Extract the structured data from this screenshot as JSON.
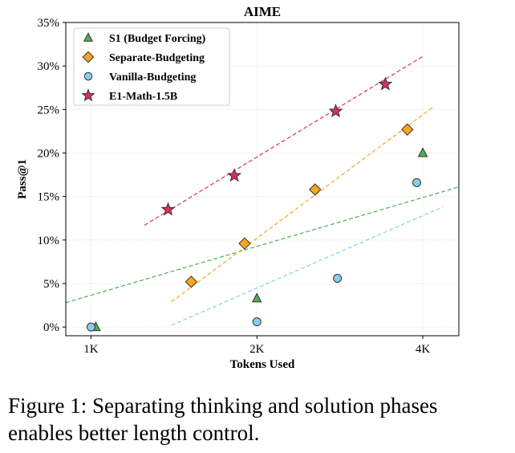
{
  "chart_data": {
    "type": "scatter",
    "title": "AIME",
    "xlabel": "Tokens Used",
    "ylabel": "Pass@1",
    "x_scale": "log2",
    "xlim": [
      900,
      4650
    ],
    "ylim": [
      -1.0,
      35.0
    ],
    "xticks": [
      {
        "value": 1000,
        "label": "1K"
      },
      {
        "value": 2000,
        "label": "2K"
      },
      {
        "value": 4000,
        "label": "4K"
      }
    ],
    "yticks": [
      {
        "value": 0,
        "label": "0%"
      },
      {
        "value": 5,
        "label": "5%"
      },
      {
        "value": 10,
        "label": "10%"
      },
      {
        "value": 15,
        "label": "15%"
      },
      {
        "value": 20,
        "label": "20%"
      },
      {
        "value": 25,
        "label": "25%"
      },
      {
        "value": 30,
        "label": "30%"
      },
      {
        "value": 35,
        "label": "35%"
      }
    ],
    "grid": true,
    "legend_position": "top-left",
    "series": [
      {
        "name": "S1 (Budget Forcing)",
        "marker": "triangle",
        "color": "#4caf50",
        "points": [
          {
            "x": 1020,
            "y": 0.0
          },
          {
            "x": 2000,
            "y": 3.3
          },
          {
            "x": 4000,
            "y": 20.0
          }
        ],
        "trend": [
          {
            "x": 900,
            "y": 2.8
          },
          {
            "x": 4650,
            "y": 16.1
          }
        ]
      },
      {
        "name": "Separate-Budgeting",
        "marker": "diamond",
        "color": "#f5a623",
        "points": [
          {
            "x": 1520,
            "y": 5.2
          },
          {
            "x": 1900,
            "y": 9.6
          },
          {
            "x": 2550,
            "y": 15.8
          },
          {
            "x": 3750,
            "y": 22.7
          }
        ],
        "trend": [
          {
            "x": 1400,
            "y": 2.9
          },
          {
            "x": 4200,
            "y": 25.4
          }
        ]
      },
      {
        "name": "Vanilla-Budgeting",
        "marker": "circle",
        "color": "#87ceeb",
        "points": [
          {
            "x": 1000,
            "y": 0.0
          },
          {
            "x": 2000,
            "y": 0.6
          },
          {
            "x": 2800,
            "y": 5.6
          },
          {
            "x": 3900,
            "y": 16.6
          }
        ],
        "trend": [
          {
            "x": 1400,
            "y": 0.2
          },
          {
            "x": 4350,
            "y": 13.8
          }
        ]
      },
      {
        "name": "E1-Math-1.5B",
        "marker": "star",
        "color": "#d6315a",
        "points": [
          {
            "x": 1380,
            "y": 13.5
          },
          {
            "x": 1820,
            "y": 17.4
          },
          {
            "x": 2780,
            "y": 24.8
          },
          {
            "x": 3420,
            "y": 27.9
          }
        ],
        "trend": [
          {
            "x": 1250,
            "y": 11.7
          },
          {
            "x": 4000,
            "y": 31.1
          }
        ]
      }
    ]
  },
  "caption": "Figure 1: Separating thinking and solution phases enables better length control."
}
